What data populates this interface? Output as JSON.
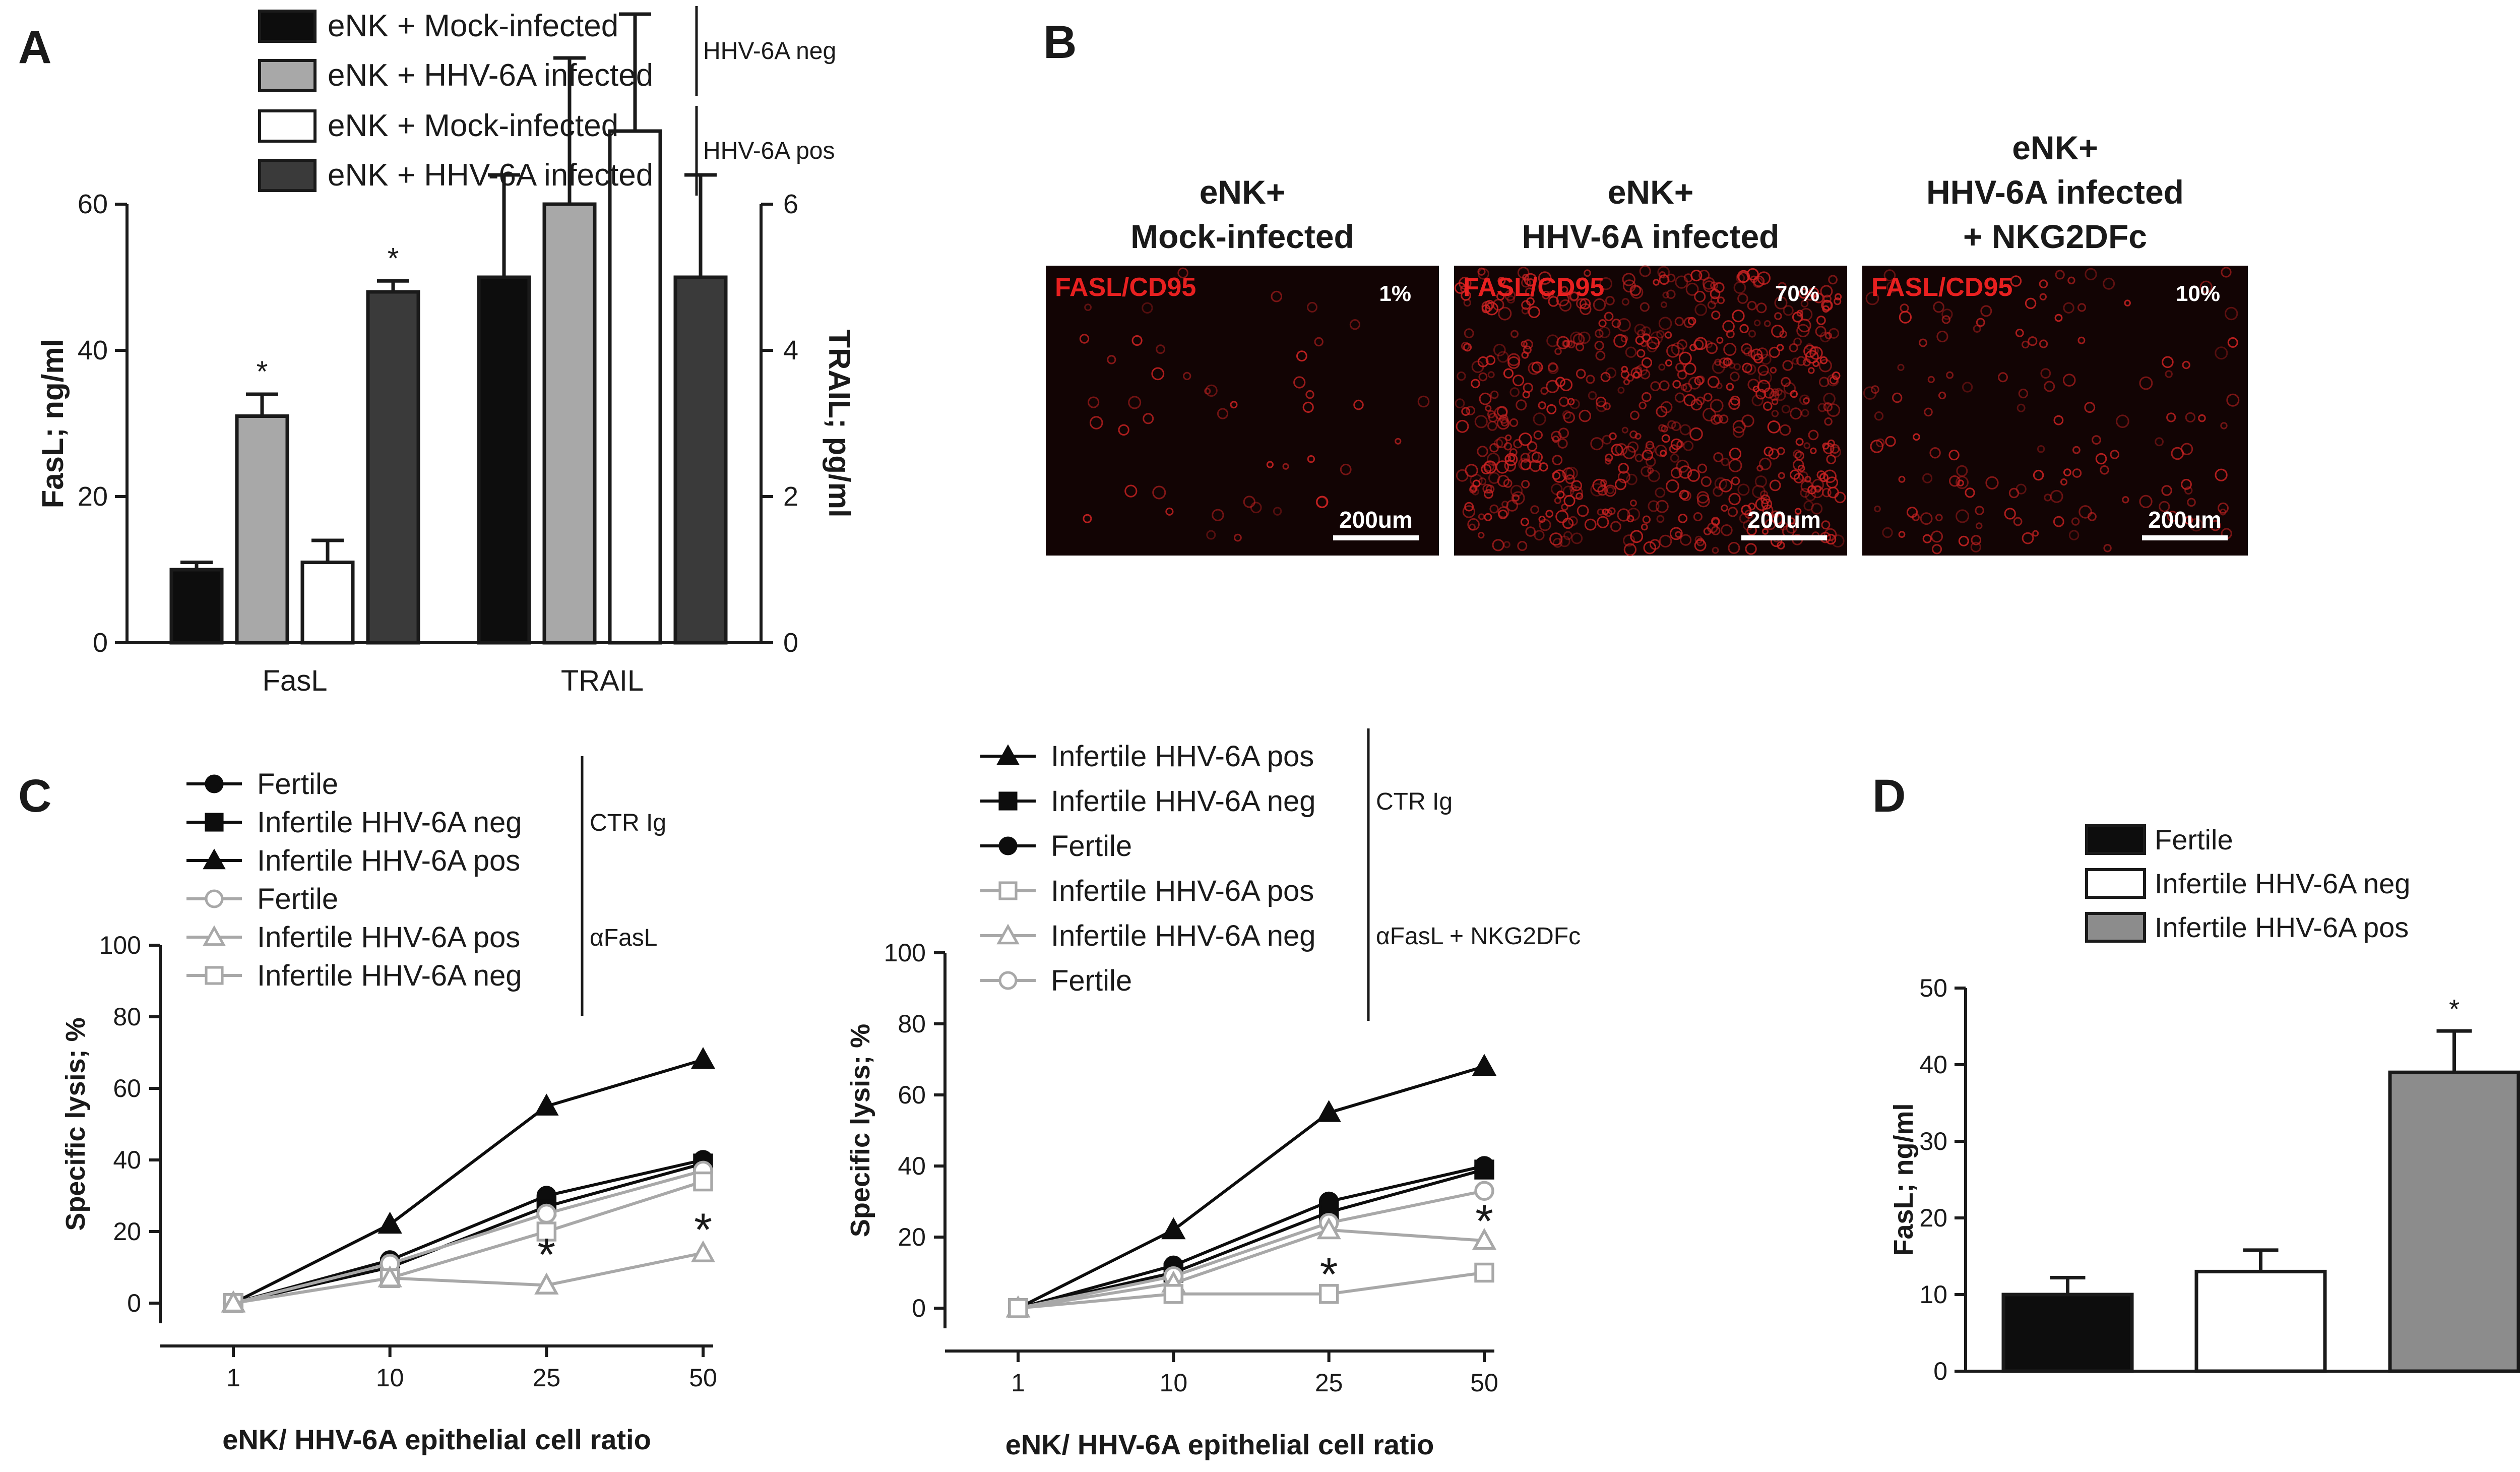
{
  "colors": {
    "black": "#0d0d0d",
    "light_gray": "#a8a8a8",
    "white": "#ffffff",
    "dark_gray": "#3a3a3a",
    "medium_gray": "#8c8c8c",
    "micrograph_text": "#e82020",
    "micrograph_bg": "#120404"
  },
  "chart_data": [
    {
      "panel": "A",
      "type": "bar",
      "categories": [
        "FasL",
        "TRAIL"
      ],
      "ylabel": "FasL; ng/ml",
      "y2label": "TRAIL; pg/ml",
      "ylim": [
        0,
        60
      ],
      "y2lim": [
        0,
        6
      ],
      "yticks": [
        "0",
        "20",
        "40",
        "60"
      ],
      "y2ticks": [
        "0",
        "2",
        "4",
        "6"
      ],
      "legend_groups": [
        {
          "label": "HHV-6A neg",
          "entries": [
            "eNK + Mock-infected",
            "eNK + HHV-6A infected"
          ]
        },
        {
          "label": "HHV-6A pos",
          "entries": [
            "eNK + Mock-infected",
            "eNK + HHV-6A infected"
          ]
        }
      ],
      "series": [
        {
          "name": "eNK + Mock-infected",
          "group": "HHV-6A neg",
          "color": "#0d0d0d",
          "values": [
            10,
            5
          ],
          "errors": [
            1,
            1.4
          ],
          "sig": [
            "",
            ""
          ]
        },
        {
          "name": "eNK + HHV-6A infected",
          "group": "HHV-6A neg",
          "color": "#a8a8a8",
          "values": [
            31,
            6
          ],
          "errors": [
            3,
            2
          ],
          "sig": [
            "*",
            ""
          ]
        },
        {
          "name": "eNK + Mock-infected",
          "group": "HHV-6A pos",
          "color": "#ffffff",
          "values": [
            11,
            7
          ],
          "errors": [
            3,
            1.6
          ],
          "sig": [
            "",
            ""
          ]
        },
        {
          "name": "eNK + HHV-6A infected",
          "group": "HHV-6A pos",
          "color": "#3a3a3a",
          "values": [
            48,
            5
          ],
          "errors": [
            1.5,
            1.4
          ],
          "sig": [
            "*",
            ""
          ]
        }
      ]
    },
    {
      "panel": "C-left",
      "type": "line",
      "categories": [
        "1",
        "10",
        "25",
        "50"
      ],
      "xlabel": "eNK/ HHV-6A epithelial cell ratio",
      "ylabel": "Specific lysis; %",
      "ylim": [
        0,
        100
      ],
      "yticks": [
        "0",
        "20",
        "40",
        "60",
        "80",
        "100"
      ],
      "legend_groups": [
        {
          "label": "CTR Ig",
          "entries": [
            {
              "name": "Fertile",
              "marker": "circle",
              "color": "#0d0d0d",
              "filled": true
            },
            {
              "name": "Infertile HHV-6A neg",
              "marker": "square",
              "color": "#0d0d0d",
              "filled": true
            },
            {
              "name": "Infertile HHV-6A pos",
              "marker": "triangle",
              "color": "#0d0d0d",
              "filled": true
            }
          ]
        },
        {
          "label": "αFasL",
          "entries": [
            {
              "name": "Fertile",
              "marker": "circle",
              "color": "#a8a8a8",
              "filled": false
            },
            {
              "name": "Infertile HHV-6A pos",
              "marker": "triangle",
              "color": "#a8a8a8",
              "filled": false
            },
            {
              "name": "Infertile HHV-6A neg",
              "marker": "square",
              "color": "#a8a8a8",
              "filled": false
            }
          ]
        }
      ],
      "series": [
        {
          "name": "Infertile HHV-6A pos",
          "treatment": "CTR Ig",
          "marker": "triangle",
          "color": "#0d0d0d",
          "filled": true,
          "values": [
            0,
            22,
            55,
            68
          ]
        },
        {
          "name": "Fertile",
          "treatment": "CTR Ig",
          "marker": "circle",
          "color": "#0d0d0d",
          "filled": true,
          "values": [
            0,
            12,
            30,
            40
          ]
        },
        {
          "name": "Infertile HHV-6A neg",
          "treatment": "CTR Ig",
          "marker": "square",
          "color": "#0d0d0d",
          "filled": true,
          "values": [
            0,
            10,
            27,
            39
          ]
        },
        {
          "name": "Fertile",
          "treatment": "αFasL",
          "marker": "circle",
          "color": "#a8a8a8",
          "filled": false,
          "values": [
            0,
            11,
            25,
            37
          ]
        },
        {
          "name": "Infertile HHV-6A neg",
          "treatment": "αFasL",
          "marker": "square",
          "color": "#a8a8a8",
          "filled": false,
          "values": [
            0,
            7,
            20,
            34
          ]
        },
        {
          "name": "Infertile HHV-6A pos",
          "treatment": "αFasL",
          "marker": "triangle",
          "color": "#a8a8a8",
          "filled": false,
          "values": [
            0,
            7,
            5,
            14
          ]
        }
      ],
      "annotations": [
        {
          "text": "*",
          "x": "25",
          "y": 14
        },
        {
          "text": "*",
          "x": "50",
          "y": 21
        }
      ]
    },
    {
      "panel": "C-right",
      "type": "line",
      "categories": [
        "1",
        "10",
        "25",
        "50"
      ],
      "xlabel": "eNK/ HHV-6A epithelial cell ratio",
      "ylabel": "Specific lysis; %",
      "ylim": [
        0,
        100
      ],
      "yticks": [
        "0",
        "20",
        "40",
        "60",
        "80",
        "100"
      ],
      "legend_groups": [
        {
          "label": "CTR Ig",
          "entries": [
            {
              "name": "Infertile HHV-6A pos",
              "marker": "triangle",
              "color": "#0d0d0d",
              "filled": true
            },
            {
              "name": "Infertile HHV-6A neg",
              "marker": "square",
              "color": "#0d0d0d",
              "filled": true
            },
            {
              "name": "Fertile",
              "marker": "circle",
              "color": "#0d0d0d",
              "filled": true
            }
          ]
        },
        {
          "label": "αFasL + NKG2DFc",
          "entries": [
            {
              "name": "Infertile HHV-6A pos",
              "marker": "square",
              "color": "#a8a8a8",
              "filled": false
            },
            {
              "name": "Infertile HHV-6A neg",
              "marker": "triangle",
              "color": "#a8a8a8",
              "filled": false
            },
            {
              "name": "Fertile",
              "marker": "circle",
              "color": "#a8a8a8",
              "filled": false
            }
          ]
        }
      ],
      "series": [
        {
          "name": "Infertile HHV-6A pos",
          "treatment": "CTR Ig",
          "marker": "triangle",
          "color": "#0d0d0d",
          "filled": true,
          "values": [
            0,
            22,
            55,
            68
          ]
        },
        {
          "name": "Fertile",
          "treatment": "CTR Ig",
          "marker": "circle",
          "color": "#0d0d0d",
          "filled": true,
          "values": [
            0,
            12,
            30,
            40
          ]
        },
        {
          "name": "Infertile HHV-6A neg",
          "treatment": "CTR Ig",
          "marker": "square",
          "color": "#0d0d0d",
          "filled": true,
          "values": [
            0,
            10,
            27,
            39
          ]
        },
        {
          "name": "Fertile",
          "treatment": "αFasL + NKG2DFc",
          "marker": "circle",
          "color": "#a8a8a8",
          "filled": false,
          "values": [
            0,
            9,
            24,
            33
          ]
        },
        {
          "name": "Infertile HHV-6A neg",
          "treatment": "αFasL + NKG2DFc",
          "marker": "triangle",
          "color": "#a8a8a8",
          "filled": false,
          "values": [
            0,
            7,
            22,
            19
          ]
        },
        {
          "name": "Infertile HHV-6A pos",
          "treatment": "αFasL + NKG2DFc",
          "marker": "square",
          "color": "#a8a8a8",
          "filled": false,
          "values": [
            0,
            4,
            4,
            10
          ]
        }
      ],
      "annotations": [
        {
          "text": "*",
          "x": "25",
          "y": 10
        },
        {
          "text": "*",
          "x": "50",
          "y": 25
        }
      ]
    },
    {
      "panel": "D",
      "type": "bar",
      "categories": [
        "Fertile",
        "Infertile HHV-6A neg",
        "Infertile HHV-6A pos"
      ],
      "ylabel": "FasL; ng/ml",
      "ylim": [
        0,
        50
      ],
      "yticks": [
        "0",
        "10",
        "20",
        "30",
        "40",
        "50"
      ],
      "legend": [
        "Fertile",
        "Infertile HHV-6A neg",
        "Infertile HHV-6A pos"
      ],
      "series": [
        {
          "values": [
            10,
            13,
            39
          ],
          "errors": [
            2.2,
            2.8,
            5.4
          ],
          "colors": [
            "#0d0d0d",
            "#ffffff",
            "#8c8c8c"
          ],
          "sig": [
            "",
            "",
            "*"
          ]
        }
      ]
    }
  ],
  "panel_labels": {
    "a": "A",
    "b": "B",
    "c": "C",
    "d": "D"
  },
  "micrographs": [
    {
      "title_lines": [
        "eNK+",
        "Mock-infected"
      ],
      "stain": "FASL/CD95",
      "percent": "1%",
      "scale": "200um",
      "density": 0.05
    },
    {
      "title_lines": [
        "eNK+",
        "HHV-6A infected"
      ],
      "stain": "FASL/CD95",
      "percent": "70%",
      "scale": "200um",
      "density": 0.7
    },
    {
      "title_lines": [
        "eNK+",
        "HHV-6A infected",
        "+ NKG2DFc"
      ],
      "stain": "FASL/CD95",
      "percent": "10%",
      "scale": "200um",
      "density": 0.15
    }
  ]
}
